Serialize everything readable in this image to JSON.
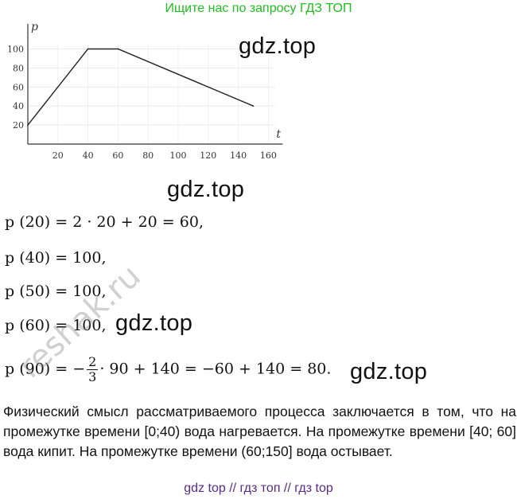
{
  "banner": "Ищите нас по запросу ГДЗ ТОП",
  "watermark": "gdz.top",
  "side_watermark": "reshak.ru",
  "chart_data": {
    "type": "line",
    "xlabel": "t",
    "ylabel": "p",
    "xticks": [
      "20",
      "40",
      "60",
      "80",
      "100",
      "120",
      "140",
      "160"
    ],
    "yticks": [
      "20",
      "40",
      "60",
      "80",
      "100"
    ],
    "xlim": [
      0,
      160
    ],
    "ylim": [
      0,
      110
    ],
    "x": [
      0,
      40,
      60,
      150
    ],
    "y": [
      20,
      100,
      100,
      40
    ]
  },
  "equations": {
    "e1": "p (20) = 2 · 20 + 20 = 60,",
    "e2": "p (40) = 100,",
    "e3": "p (50) = 100,",
    "e4": "p (60) = 100,",
    "e5_prefix": "p (90) = −",
    "e5_num": "2",
    "e5_den": "3",
    "e5_suffix": "· 90 + 140 = −60 + 140 = 80."
  },
  "paragraph": "Физический смысл рассматриваемого процесса заключается в том, что на промежутке времени [0;40) вода нагревается. На промежутке времени [40; 60] вода кипит. На промежутке времени (60;150] вода остывает.",
  "footer": "gdz top  //  гдз топ  //  гдз top"
}
